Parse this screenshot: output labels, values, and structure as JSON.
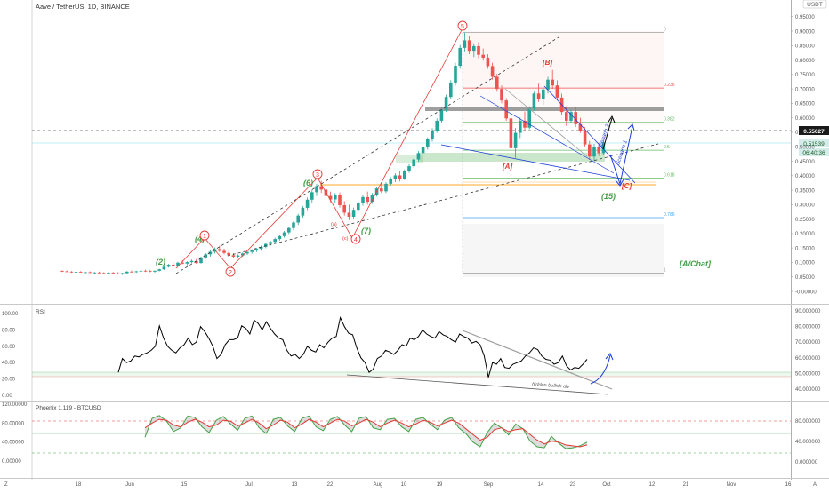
{
  "header": {
    "symbol_title": "Aave / TetherUS, 1D, BINANCE",
    "currency_button": "USDT"
  },
  "colors": {
    "up": "#26a69a",
    "down": "#ef5350",
    "wave_green": "#43a047",
    "wave_red": "#e53935",
    "fib_line": "#9e9e9e",
    "channel_blue": "#1e3fd8",
    "rsi_line": "#000000",
    "phx_green": "#43a047",
    "phx_red": "#e53935"
  },
  "chart_data": [
    {
      "type": "candlestick",
      "panel": "price",
      "x_axis_labels": [
        "18",
        "Jun",
        "15",
        "Jul",
        "13",
        "22",
        "Aug",
        "10",
        "19",
        "Sep",
        "14",
        "23",
        "Oct",
        "12",
        "21",
        "Nov",
        "16"
      ],
      "y_ticks": [
        "0.95000",
        "0.90000",
        "0.85000",
        "0.80000",
        "0.75000",
        "0.70000",
        "0.65000",
        "0.60000",
        "0.55000",
        "0.50000",
        "0.45000",
        "0.40000",
        "0.35000",
        "0.30000",
        "0.25000",
        "0.20000",
        "0.15000",
        "0.10000",
        "0.05000",
        "-0.00000"
      ],
      "ylim": [
        -0.03,
        0.985
      ],
      "last_price": "0.55627",
      "price_tag": "0.51539",
      "countdown": "06:40:36",
      "fib_levels": [
        {
          "label": "0",
          "price": 0.895
        },
        {
          "label": "0.236",
          "price": 0.703
        },
        {
          "label": "0.382",
          "price": 0.585
        },
        {
          "label": "0.5",
          "price": 0.488
        },
        {
          "label": "0.618",
          "price": 0.392
        },
        {
          "label": "0.786",
          "price": 0.255
        },
        {
          "label": "1",
          "price": 0.063
        }
      ],
      "wave_labels": [
        "(2)",
        "(4)",
        "(6)",
        "(7)",
        "[A]",
        "[B]",
        "[C]",
        "(15)",
        "1",
        "2",
        "3",
        "4",
        "5",
        "(a)",
        "(c)",
        "[A/Chat]"
      ],
      "arrow_labels": [
        "Scenario 1",
        "Scenario 2"
      ],
      "ohlc": [
        {
          "o": 0.07,
          "h": 0.073,
          "l": 0.067,
          "c": 0.069
        },
        {
          "o": 0.069,
          "h": 0.072,
          "l": 0.066,
          "c": 0.068
        },
        {
          "o": 0.068,
          "h": 0.07,
          "l": 0.064,
          "c": 0.066
        },
        {
          "o": 0.066,
          "h": 0.069,
          "l": 0.063,
          "c": 0.067
        },
        {
          "o": 0.067,
          "h": 0.07,
          "l": 0.064,
          "c": 0.065
        },
        {
          "o": 0.065,
          "h": 0.068,
          "l": 0.062,
          "c": 0.066
        },
        {
          "o": 0.066,
          "h": 0.069,
          "l": 0.063,
          "c": 0.064
        },
        {
          "o": 0.064,
          "h": 0.067,
          "l": 0.061,
          "c": 0.065
        },
        {
          "o": 0.065,
          "h": 0.068,
          "l": 0.062,
          "c": 0.063
        },
        {
          "o": 0.063,
          "h": 0.066,
          "l": 0.06,
          "c": 0.062
        },
        {
          "o": 0.062,
          "h": 0.066,
          "l": 0.059,
          "c": 0.064
        },
        {
          "o": 0.064,
          "h": 0.067,
          "l": 0.061,
          "c": 0.062
        },
        {
          "o": 0.062,
          "h": 0.066,
          "l": 0.058,
          "c": 0.06
        },
        {
          "o": 0.06,
          "h": 0.064,
          "l": 0.057,
          "c": 0.063
        },
        {
          "o": 0.063,
          "h": 0.07,
          "l": 0.061,
          "c": 0.068
        },
        {
          "o": 0.068,
          "h": 0.072,
          "l": 0.065,
          "c": 0.067
        },
        {
          "o": 0.067,
          "h": 0.071,
          "l": 0.064,
          "c": 0.069
        },
        {
          "o": 0.069,
          "h": 0.073,
          "l": 0.066,
          "c": 0.071
        },
        {
          "o": 0.071,
          "h": 0.075,
          "l": 0.067,
          "c": 0.07
        },
        {
          "o": 0.07,
          "h": 0.074,
          "l": 0.066,
          "c": 0.068
        },
        {
          "o": 0.068,
          "h": 0.072,
          "l": 0.065,
          "c": 0.071
        },
        {
          "o": 0.071,
          "h": 0.078,
          "l": 0.069,
          "c": 0.076
        },
        {
          "o": 0.076,
          "h": 0.088,
          "l": 0.074,
          "c": 0.085
        },
        {
          "o": 0.085,
          "h": 0.095,
          "l": 0.082,
          "c": 0.092
        },
        {
          "o": 0.092,
          "h": 0.1,
          "l": 0.087,
          "c": 0.089
        },
        {
          "o": 0.089,
          "h": 0.102,
          "l": 0.086,
          "c": 0.099
        },
        {
          "o": 0.099,
          "h": 0.108,
          "l": 0.094,
          "c": 0.096
        },
        {
          "o": 0.096,
          "h": 0.104,
          "l": 0.09,
          "c": 0.101
        },
        {
          "o": 0.101,
          "h": 0.11,
          "l": 0.097,
          "c": 0.105
        },
        {
          "o": 0.105,
          "h": 0.112,
          "l": 0.095,
          "c": 0.098
        },
        {
          "o": 0.098,
          "h": 0.12,
          "l": 0.096,
          "c": 0.117
        },
        {
          "o": 0.117,
          "h": 0.132,
          "l": 0.112,
          "c": 0.128
        },
        {
          "o": 0.128,
          "h": 0.142,
          "l": 0.12,
          "c": 0.137
        },
        {
          "o": 0.137,
          "h": 0.152,
          "l": 0.131,
          "c": 0.146
        },
        {
          "o": 0.146,
          "h": 0.158,
          "l": 0.136,
          "c": 0.14
        },
        {
          "o": 0.14,
          "h": 0.148,
          "l": 0.128,
          "c": 0.133
        },
        {
          "o": 0.133,
          "h": 0.14,
          "l": 0.12,
          "c": 0.125
        },
        {
          "o": 0.125,
          "h": 0.132,
          "l": 0.116,
          "c": 0.12
        },
        {
          "o": 0.12,
          "h": 0.128,
          "l": 0.114,
          "c": 0.124
        },
        {
          "o": 0.124,
          "h": 0.134,
          "l": 0.12,
          "c": 0.131
        },
        {
          "o": 0.131,
          "h": 0.14,
          "l": 0.126,
          "c": 0.136
        },
        {
          "o": 0.136,
          "h": 0.146,
          "l": 0.13,
          "c": 0.142
        },
        {
          "o": 0.142,
          "h": 0.15,
          "l": 0.136,
          "c": 0.147
        },
        {
          "o": 0.147,
          "h": 0.158,
          "l": 0.14,
          "c": 0.154
        },
        {
          "o": 0.154,
          "h": 0.168,
          "l": 0.149,
          "c": 0.164
        },
        {
          "o": 0.164,
          "h": 0.176,
          "l": 0.158,
          "c": 0.171
        },
        {
          "o": 0.171,
          "h": 0.186,
          "l": 0.165,
          "c": 0.181
        },
        {
          "o": 0.181,
          "h": 0.196,
          "l": 0.176,
          "c": 0.191
        },
        {
          "o": 0.191,
          "h": 0.209,
          "l": 0.186,
          "c": 0.204
        },
        {
          "o": 0.204,
          "h": 0.224,
          "l": 0.198,
          "c": 0.219
        },
        {
          "o": 0.219,
          "h": 0.243,
          "l": 0.212,
          "c": 0.238
        },
        {
          "o": 0.238,
          "h": 0.268,
          "l": 0.23,
          "c": 0.262
        },
        {
          "o": 0.262,
          "h": 0.295,
          "l": 0.255,
          "c": 0.289
        },
        {
          "o": 0.289,
          "h": 0.325,
          "l": 0.281,
          "c": 0.317
        },
        {
          "o": 0.317,
          "h": 0.352,
          "l": 0.305,
          "c": 0.343
        },
        {
          "o": 0.343,
          "h": 0.372,
          "l": 0.33,
          "c": 0.364
        },
        {
          "o": 0.364,
          "h": 0.382,
          "l": 0.34,
          "c": 0.352
        },
        {
          "o": 0.352,
          "h": 0.362,
          "l": 0.322,
          "c": 0.33
        },
        {
          "o": 0.33,
          "h": 0.345,
          "l": 0.308,
          "c": 0.318
        },
        {
          "o": 0.318,
          "h": 0.34,
          "l": 0.306,
          "c": 0.334
        },
        {
          "o": 0.334,
          "h": 0.342,
          "l": 0.29,
          "c": 0.298
        },
        {
          "o": 0.298,
          "h": 0.312,
          "l": 0.262,
          "c": 0.272
        },
        {
          "o": 0.272,
          "h": 0.3,
          "l": 0.246,
          "c": 0.258
        },
        {
          "o": 0.258,
          "h": 0.29,
          "l": 0.25,
          "c": 0.282
        },
        {
          "o": 0.282,
          "h": 0.31,
          "l": 0.275,
          "c": 0.305
        },
        {
          "o": 0.305,
          "h": 0.332,
          "l": 0.296,
          "c": 0.326
        },
        {
          "o": 0.326,
          "h": 0.345,
          "l": 0.3,
          "c": 0.31
        },
        {
          "o": 0.31,
          "h": 0.34,
          "l": 0.303,
          "c": 0.334
        },
        {
          "o": 0.334,
          "h": 0.362,
          "l": 0.328,
          "c": 0.356
        },
        {
          "o": 0.356,
          "h": 0.374,
          "l": 0.34,
          "c": 0.346
        },
        {
          "o": 0.346,
          "h": 0.378,
          "l": 0.34,
          "c": 0.372
        },
        {
          "o": 0.372,
          "h": 0.395,
          "l": 0.366,
          "c": 0.388
        },
        {
          "o": 0.388,
          "h": 0.408,
          "l": 0.378,
          "c": 0.401
        },
        {
          "o": 0.401,
          "h": 0.416,
          "l": 0.38,
          "c": 0.39
        },
        {
          "o": 0.39,
          "h": 0.422,
          "l": 0.385,
          "c": 0.417
        },
        {
          "o": 0.417,
          "h": 0.44,
          "l": 0.41,
          "c": 0.433
        },
        {
          "o": 0.433,
          "h": 0.462,
          "l": 0.427,
          "c": 0.456
        },
        {
          "o": 0.456,
          "h": 0.485,
          "l": 0.448,
          "c": 0.478
        },
        {
          "o": 0.478,
          "h": 0.506,
          "l": 0.47,
          "c": 0.498
        },
        {
          "o": 0.498,
          "h": 0.532,
          "l": 0.49,
          "c": 0.526
        },
        {
          "o": 0.526,
          "h": 0.564,
          "l": 0.518,
          "c": 0.556
        },
        {
          "o": 0.556,
          "h": 0.598,
          "l": 0.548,
          "c": 0.59
        },
        {
          "o": 0.59,
          "h": 0.636,
          "l": 0.582,
          "c": 0.628
        },
        {
          "o": 0.628,
          "h": 0.68,
          "l": 0.62,
          "c": 0.672
        },
        {
          "o": 0.672,
          "h": 0.73,
          "l": 0.665,
          "c": 0.722
        },
        {
          "o": 0.722,
          "h": 0.79,
          "l": 0.712,
          "c": 0.78
        },
        {
          "o": 0.78,
          "h": 0.852,
          "l": 0.77,
          "c": 0.842
        },
        {
          "o": 0.842,
          "h": 0.895,
          "l": 0.83,
          "c": 0.868
        },
        {
          "o": 0.868,
          "h": 0.882,
          "l": 0.82,
          "c": 0.832
        },
        {
          "o": 0.832,
          "h": 0.858,
          "l": 0.81,
          "c": 0.848
        },
        {
          "o": 0.848,
          "h": 0.862,
          "l": 0.806,
          "c": 0.818
        },
        {
          "o": 0.818,
          "h": 0.84,
          "l": 0.798,
          "c": 0.808
        },
        {
          "o": 0.808,
          "h": 0.82,
          "l": 0.77,
          "c": 0.779
        },
        {
          "o": 0.779,
          "h": 0.79,
          "l": 0.732,
          "c": 0.742
        },
        {
          "o": 0.742,
          "h": 0.752,
          "l": 0.69,
          "c": 0.7
        },
        {
          "o": 0.7,
          "h": 0.712,
          "l": 0.65,
          "c": 0.66
        },
        {
          "o": 0.66,
          "h": 0.668,
          "l": 0.59,
          "c": 0.598
        },
        {
          "o": 0.598,
          "h": 0.61,
          "l": 0.48,
          "c": 0.495
        },
        {
          "o": 0.495,
          "h": 0.565,
          "l": 0.462,
          "c": 0.548
        },
        {
          "o": 0.548,
          "h": 0.602,
          "l": 0.53,
          "c": 0.59
        },
        {
          "o": 0.59,
          "h": 0.622,
          "l": 0.556,
          "c": 0.566
        },
        {
          "o": 0.566,
          "h": 0.64,
          "l": 0.56,
          "c": 0.632
        },
        {
          "o": 0.632,
          "h": 0.69,
          "l": 0.625,
          "c": 0.684
        },
        {
          "o": 0.684,
          "h": 0.718,
          "l": 0.655,
          "c": 0.666
        },
        {
          "o": 0.666,
          "h": 0.706,
          "l": 0.645,
          "c": 0.698
        },
        {
          "o": 0.698,
          "h": 0.742,
          "l": 0.684,
          "c": 0.732
        },
        {
          "o": 0.732,
          "h": 0.766,
          "l": 0.7,
          "c": 0.712
        },
        {
          "o": 0.712,
          "h": 0.73,
          "l": 0.66,
          "c": 0.67
        },
        {
          "o": 0.67,
          "h": 0.684,
          "l": 0.61,
          "c": 0.62
        },
        {
          "o": 0.62,
          "h": 0.64,
          "l": 0.572,
          "c": 0.59
        },
        {
          "o": 0.59,
          "h": 0.628,
          "l": 0.58,
          "c": 0.62
        },
        {
          "o": 0.62,
          "h": 0.636,
          "l": 0.568,
          "c": 0.578
        },
        {
          "o": 0.578,
          "h": 0.6,
          "l": 0.548,
          "c": 0.556
        },
        {
          "o": 0.556,
          "h": 0.568,
          "l": 0.5,
          "c": 0.508
        },
        {
          "o": 0.508,
          "h": 0.52,
          "l": 0.455,
          "c": 0.466
        },
        {
          "o": 0.466,
          "h": 0.51,
          "l": 0.452,
          "c": 0.5
        },
        {
          "o": 0.5,
          "h": 0.514,
          "l": 0.468,
          "c": 0.478
        },
        {
          "o": 0.478,
          "h": 0.522,
          "l": 0.472,
          "c": 0.515
        }
      ]
    },
    {
      "type": "line",
      "panel": "rsi",
      "title": "RSI",
      "y_ticks": [
        "100.00",
        "80.00",
        "60.00",
        "40.00",
        "20.00",
        "0.00"
      ],
      "right_ticks": [
        "90.000000",
        "80.000000",
        "70.000000",
        "60.000000",
        "50.000000",
        "40.000000"
      ],
      "annotation": "hidden bullish div",
      "values": [
        28,
        45,
        40,
        42,
        48,
        47,
        50,
        52,
        55,
        60,
        85,
        70,
        60,
        55,
        52,
        58,
        62,
        70,
        62,
        65,
        84,
        78,
        70,
        60,
        45,
        50,
        62,
        68,
        68,
        70,
        85,
        82,
        75,
        92,
        88,
        80,
        90,
        82,
        75,
        70,
        68,
        55,
        48,
        50,
        45,
        50,
        60,
        55,
        53,
        62,
        58,
        65,
        70,
        72,
        95,
        84,
        76,
        74,
        58,
        46,
        40,
        28,
        32,
        45,
        48,
        55,
        53,
        50,
        55,
        62,
        60,
        70,
        68,
        72,
        80,
        75,
        72,
        70,
        78,
        74,
        72,
        68,
        65,
        75,
        72,
        70,
        64,
        66,
        62,
        48,
        22,
        40,
        38,
        45,
        34,
        33,
        38,
        40,
        42,
        48,
        52,
        58,
        56,
        48,
        44,
        43,
        38,
        40,
        48,
        36,
        31,
        34,
        33,
        38,
        44
      ]
    },
    {
      "type": "line",
      "panel": "phoenix",
      "title": "Phoenix 1.119 - BTCUSD",
      "y_ticks": [
        "120.00000",
        "80.00000",
        "40.00000",
        "0.00000"
      ],
      "right_ticks": [
        "80.000000",
        "40.000000",
        "0.000000"
      ],
      "series": [
        {
          "values": [
            50,
            90,
            96,
            85,
            62,
            70,
            95,
            92,
            72,
            60,
            86,
            94,
            78,
            65,
            90,
            95,
            70,
            58,
            88,
            92,
            74,
            62,
            90,
            95,
            72,
            64,
            88,
            94,
            76,
            62,
            90,
            94,
            70,
            66,
            88,
            90,
            72,
            62,
            88,
            92,
            78,
            66,
            86,
            92,
            70,
            58,
            40,
            30,
            60,
            80,
            70,
            55,
            78,
            68,
            42,
            30,
            28,
            52,
            38,
            26,
            28,
            32,
            40
          ]
        },
        {
          "values": [
            70,
            80,
            88,
            86,
            76,
            72,
            82,
            88,
            82,
            72,
            76,
            86,
            84,
            74,
            80,
            88,
            80,
            68,
            76,
            86,
            82,
            70,
            78,
            88,
            82,
            72,
            80,
            88,
            84,
            74,
            80,
            88,
            82,
            72,
            80,
            86,
            80,
            72,
            78,
            86,
            82,
            74,
            80,
            86,
            80,
            68,
            56,
            44,
            50,
            66,
            70,
            62,
            66,
            68,
            56,
            44,
            36,
            42,
            40,
            34,
            32,
            30,
            34
          ]
        }
      ]
    }
  ]
}
